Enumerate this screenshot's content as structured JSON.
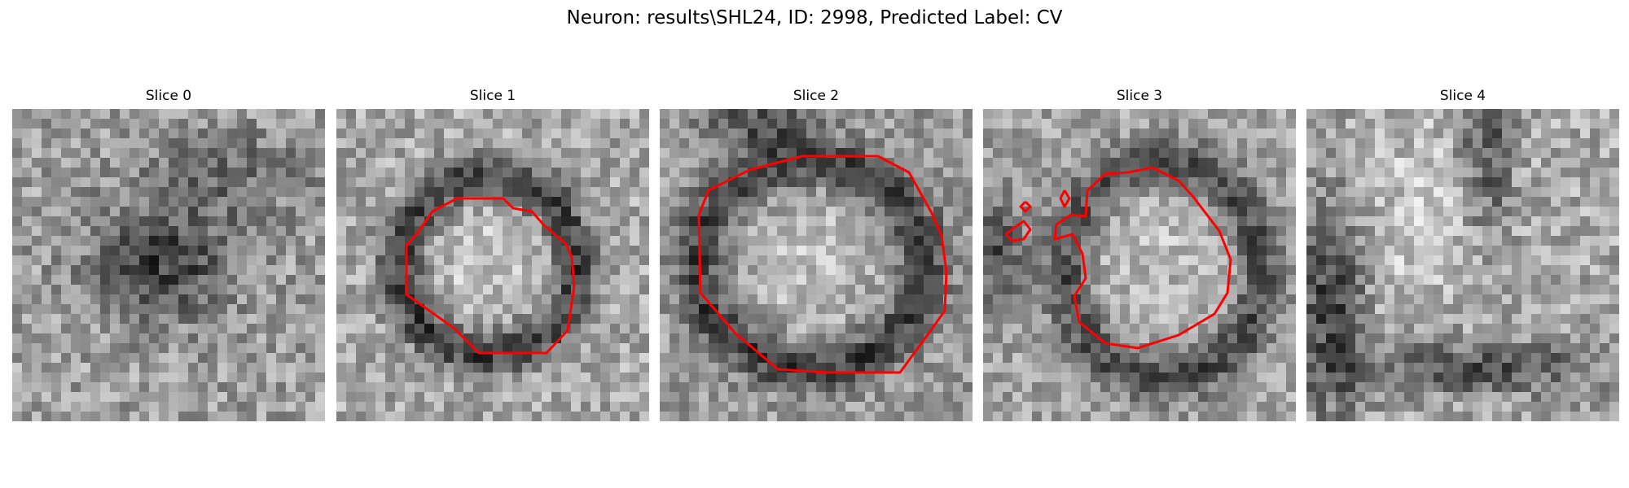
{
  "figure": {
    "title": "Neuron: results\\SHL24, ID: 2998, Predicted Label: CV"
  },
  "panels": [
    {
      "title": "Slice 0",
      "has_contour": false
    },
    {
      "title": "Slice 1",
      "has_contour": true
    },
    {
      "title": "Slice 2",
      "has_contour": true
    },
    {
      "title": "Slice 3",
      "has_contour": true
    },
    {
      "title": "Slice 4",
      "has_contour": false
    }
  ],
  "colors": {
    "contour": "#ff0000",
    "background": "#ffffff"
  }
}
